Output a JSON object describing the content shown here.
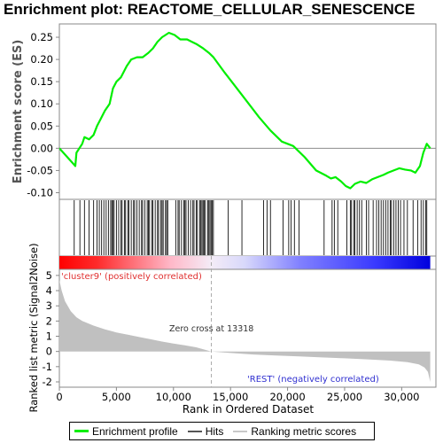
{
  "title": "Enrichment plot: REACTOME_CELLULAR_SENESCENCE",
  "chart_data": [
    {
      "type": "line",
      "panel": "enrichment-profile",
      "ylabel": "Enrichment score (ES)",
      "ylim": [
        -0.115,
        0.28
      ],
      "xlim": [
        0,
        33000
      ],
      "y_ticks": [
        0.25,
        0.2,
        0.15,
        0.1,
        0.05,
        0.0,
        -0.05,
        -0.1
      ],
      "y_tick_labels": [
        "0.25",
        "0.20",
        "0.15",
        "0.10",
        "0.05",
        "0.00",
        "-0.05",
        "-0.10"
      ],
      "series": [
        {
          "name": "Enrichment profile",
          "color": "#00ee00",
          "x": [
            0,
            1400,
            1500,
            2000,
            2200,
            2600,
            3000,
            3300,
            3600,
            4000,
            4400,
            4700,
            5000,
            5400,
            5900,
            6300,
            6800,
            7300,
            7800,
            8200,
            8600,
            9000,
            9300,
            9600,
            10100,
            10600,
            11200,
            11600,
            12000,
            12600,
            13100,
            13500,
            14500,
            16000,
            17500,
            18500,
            19500,
            20500,
            21500,
            22500,
            23400,
            23800,
            24200,
            24700,
            25100,
            25500,
            25900,
            26400,
            26900,
            27400,
            27900,
            28400,
            28800,
            29300,
            29800,
            30300,
            30800,
            31200,
            31600,
            31900,
            32200,
            32500
          ],
          "y": [
            0.0,
            -0.04,
            -0.01,
            0.01,
            0.025,
            0.02,
            0.03,
            0.05,
            0.065,
            0.085,
            0.1,
            0.135,
            0.15,
            0.16,
            0.185,
            0.2,
            0.205,
            0.205,
            0.215,
            0.225,
            0.24,
            0.25,
            0.255,
            0.26,
            0.255,
            0.245,
            0.245,
            0.24,
            0.235,
            0.225,
            0.215,
            0.205,
            0.17,
            0.12,
            0.07,
            0.04,
            0.015,
            0.005,
            -0.02,
            -0.05,
            -0.062,
            -0.068,
            -0.065,
            -0.075,
            -0.085,
            -0.09,
            -0.08,
            -0.075,
            -0.078,
            -0.07,
            -0.065,
            -0.06,
            -0.055,
            -0.05,
            -0.045,
            -0.048,
            -0.05,
            -0.055,
            -0.04,
            -0.01,
            0.01,
            0.0
          ]
        }
      ],
      "zero_line": 0.0
    },
    {
      "type": "scatter",
      "panel": "hits",
      "legend_label": "Hits",
      "hit_ranks": [
        1300,
        1800,
        2200,
        2600,
        3000,
        3300,
        3500,
        3700,
        3900,
        4100,
        4300,
        4500,
        4600,
        4700,
        4800,
        5000,
        5200,
        5400,
        5500,
        5700,
        5800,
        6000,
        6100,
        6300,
        6500,
        6600,
        6800,
        7000,
        7200,
        7300,
        7500,
        7700,
        7800,
        7900,
        8100,
        8200,
        8400,
        8600,
        8700,
        8900,
        9000,
        9100,
        9300,
        9400,
        9500,
        10200,
        10400,
        10500,
        10700,
        10900,
        11000,
        11100,
        11300,
        11500,
        11700,
        11800,
        12000,
        12100,
        12300,
        12400,
        12500,
        12600,
        12700,
        12800,
        13000,
        13100,
        13200,
        13300,
        13400,
        13500,
        14800,
        16000,
        17900,
        18200,
        18500,
        19600,
        20100,
        20300,
        20600,
        21000,
        23200,
        23900,
        24100,
        24400,
        25200,
        25500,
        25600,
        25800,
        25900,
        26100,
        26300,
        26500,
        26900,
        27100,
        27500,
        27800,
        28000,
        28200,
        28400,
        28600,
        28800,
        29000,
        29100,
        29300,
        29500,
        29700,
        29900,
        30200,
        30500,
        31000,
        31400,
        31700,
        31900,
        32100,
        32200
      ]
    },
    {
      "type": "heatmap",
      "panel": "ranking-colorbar",
      "from_color": "#ff0000",
      "to_color": "#0000ff",
      "midpoint_rank": 13318
    },
    {
      "type": "area",
      "panel": "ranked-list-metric",
      "ylabel": "Ranked list metric (Signal2Noise)",
      "xlabel": "Rank in Ordered Dataset",
      "ylim": [
        -2.35,
        5.4
      ],
      "xlim": [
        0,
        33000
      ],
      "y_ticks": [
        5,
        4,
        3,
        2,
        1,
        0,
        -1,
        -2
      ],
      "y_tick_labels": [
        "5",
        "4",
        "3",
        "2",
        "1",
        "0",
        "-1",
        "-2"
      ],
      "x_ticks": [
        0,
        5000,
        10000,
        15000,
        20000,
        25000,
        30000
      ],
      "x_tick_labels": [
        "0",
        "5,000",
        "10,000",
        "15,000",
        "20,000",
        "25,000",
        "30,000"
      ],
      "series": [
        {
          "name": "Ranking metric scores",
          "color": "#c0c0c0",
          "x": [
            0,
            200,
            500,
            1000,
            1500,
            2000,
            3000,
            4000,
            5000,
            6000,
            7000,
            8000,
            9000,
            10000,
            11000,
            12000,
            13318,
            15000,
            17000,
            19000,
            21000,
            23000,
            25000,
            27000,
            29000,
            30500,
            31500,
            32000,
            32300,
            32500
          ],
          "y": [
            4.7,
            4.0,
            3.3,
            2.65,
            2.25,
            2.0,
            1.7,
            1.45,
            1.25,
            1.1,
            0.95,
            0.8,
            0.65,
            0.52,
            0.4,
            0.27,
            0.0,
            -0.1,
            -0.2,
            -0.27,
            -0.33,
            -0.39,
            -0.45,
            -0.52,
            -0.6,
            -0.7,
            -0.85,
            -1.05,
            -1.35,
            -2.0
          ]
        }
      ],
      "annotations": {
        "positive": "'cluster9' (positively correlated)",
        "zero_cross": "Zero cross at 13318",
        "negative": "'REST' (negatively correlated)"
      }
    }
  ],
  "legend": {
    "items": [
      {
        "label": "Enrichment profile",
        "color": "#00ee00"
      },
      {
        "label": "Hits",
        "color": "#555555"
      },
      {
        "label": "Ranking metric scores",
        "color": "#c8c8c8"
      }
    ]
  }
}
